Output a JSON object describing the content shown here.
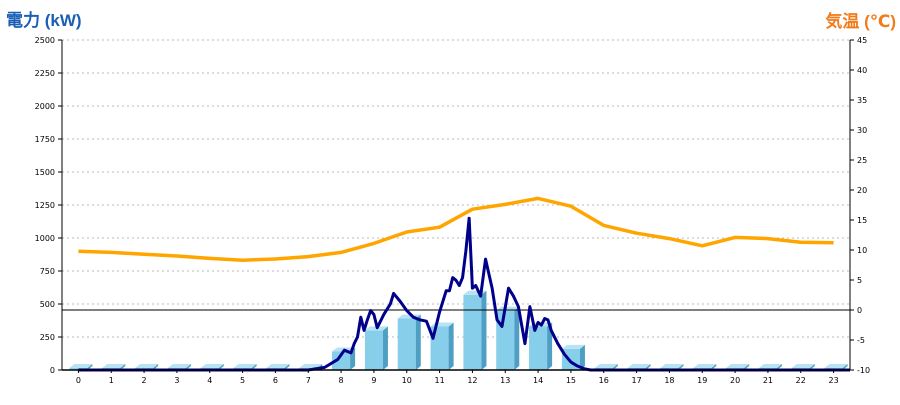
{
  "colors": {
    "power_axis_title": "#1a5fb4",
    "temp_axis_title": "#f07c1b",
    "bar_front": "#87ceeb",
    "bar_side": "#4f9fc4",
    "bar_top": "#b8e3f5",
    "power_line": "#00008b",
    "temp_line": "#ffa500",
    "grid": "#bbbbbb",
    "axis": "#000000"
  },
  "chart_data": {
    "type": "bar",
    "ylabel": "電力 (kW)",
    "y2label": "気温 (℃)",
    "xlabel": "",
    "title": "",
    "ylim": [
      0,
      2500
    ],
    "y2lim": [
      -10,
      45
    ],
    "y_ticks": [
      0,
      250,
      500,
      750,
      1000,
      1250,
      1500,
      1750,
      2000,
      2250,
      2500
    ],
    "y2_ticks": [
      -10,
      -5,
      0,
      5,
      10,
      15,
      20,
      25,
      30,
      35,
      40,
      45
    ],
    "categories": [
      "0",
      "1",
      "2",
      "3",
      "4",
      "5",
      "6",
      "7",
      "8",
      "9",
      "10",
      "11",
      "12",
      "13",
      "14",
      "15",
      "16",
      "17",
      "18",
      "19",
      "20",
      "21",
      "22",
      "23"
    ],
    "grid": "horizontal dotted",
    "series": [
      {
        "kind": "bar",
        "axis": "left",
        "values": [
          15,
          15,
          15,
          15,
          15,
          15,
          15,
          15,
          140,
          300,
          390,
          330,
          570,
          450,
          330,
          160,
          15,
          15,
          15,
          15,
          15,
          15,
          15,
          15
        ]
      },
      {
        "kind": "line",
        "axis": "left",
        "x": [
          0,
          7,
          7.5,
          7.9,
          8.1,
          8.3,
          8.4,
          8.5,
          8.6,
          8.7,
          8.8,
          8.9,
          9.0,
          9.1,
          9.3,
          9.5,
          9.6,
          9.8,
          10.0,
          10.2,
          10.4,
          10.6,
          10.8,
          11.0,
          11.2,
          11.3,
          11.4,
          11.5,
          11.6,
          11.7,
          11.8,
          11.9,
          12.0,
          12.1,
          12.25,
          12.4,
          12.6,
          12.75,
          12.9,
          13.1,
          13.25,
          13.4,
          13.6,
          13.75,
          13.9,
          14.0,
          14.1,
          14.2,
          14.3,
          14.4,
          14.6,
          14.8,
          15.0,
          15.2,
          15.4,
          15.6,
          16,
          23.5
        ],
        "values": [
          0,
          0,
          20,
          80,
          150,
          130,
          200,
          250,
          400,
          300,
          380,
          450,
          420,
          320,
          420,
          500,
          580,
          520,
          450,
          400,
          380,
          370,
          240,
          440,
          600,
          600,
          700,
          680,
          640,
          700,
          900,
          1150,
          620,
          640,
          560,
          840,
          620,
          380,
          330,
          620,
          560,
          480,
          200,
          480,
          300,
          360,
          340,
          390,
          380,
          300,
          200,
          120,
          60,
          30,
          10,
          0,
          0,
          0
        ]
      },
      {
        "kind": "line",
        "axis": "right",
        "x": [
          0,
          1,
          2,
          3,
          4,
          5,
          6,
          7,
          8,
          9,
          10,
          11,
          12,
          13,
          14,
          15,
          16,
          17,
          18,
          19,
          20,
          21,
          22,
          23
        ],
        "values": [
          9.8,
          9.6,
          9.3,
          9.0,
          8.6,
          8.3,
          8.5,
          8.9,
          9.6,
          11.1,
          13.0,
          13.8,
          16.8,
          17.6,
          18.6,
          17.3,
          14.1,
          12.8,
          11.9,
          10.7,
          12.1,
          11.9,
          11.3,
          11.2
        ]
      }
    ],
    "reference_line": {
      "axis": "right",
      "value": 0
    }
  }
}
